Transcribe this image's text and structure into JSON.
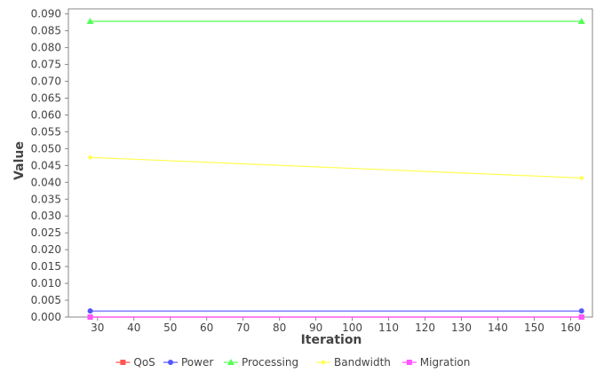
{
  "chart_data": {
    "type": "line",
    "title": "",
    "xlabel": "Iteration",
    "ylabel": "Value",
    "xlim": [
      22,
      166
    ],
    "ylim": [
      0,
      0.0915
    ],
    "xticks": [
      30,
      40,
      50,
      60,
      70,
      80,
      90,
      100,
      110,
      120,
      130,
      140,
      150,
      160
    ],
    "yticks": [
      0.0,
      0.005,
      0.01,
      0.015,
      0.02,
      0.025,
      0.03,
      0.035,
      0.04,
      0.045,
      0.05,
      0.055,
      0.06,
      0.065,
      0.07,
      0.075,
      0.08,
      0.085,
      0.09
    ],
    "ytick_labels": [
      "0.000",
      "0.005",
      "0.010",
      "0.015",
      "0.020",
      "0.025",
      "0.030",
      "0.035",
      "0.040",
      "0.045",
      "0.050",
      "0.055",
      "0.060",
      "0.065",
      "0.070",
      "0.075",
      "0.080",
      "0.085",
      "0.090"
    ],
    "grid": false,
    "legend_position": "bottom",
    "series": [
      {
        "name": "QoS",
        "color": "#ff5555",
        "marker": "square",
        "x": [
          28,
          163
        ],
        "y": [
          0.0,
          0.0
        ]
      },
      {
        "name": "Power",
        "color": "#5555ff",
        "marker": "circle",
        "x": [
          28,
          163
        ],
        "y": [
          0.0018,
          0.0018
        ]
      },
      {
        "name": "Processing",
        "color": "#55ff55",
        "marker": "triangle",
        "x": [
          28,
          163
        ],
        "y": [
          0.0878,
          0.0878
        ]
      },
      {
        "name": "Bandwidth",
        "color": "#ffff55",
        "marker": "diamond",
        "x": [
          28,
          163
        ],
        "y": [
          0.0474,
          0.0413
        ]
      },
      {
        "name": "Migration",
        "color": "#ff55ff",
        "marker": "square",
        "x": [
          28,
          163
        ],
        "y": [
          0.0,
          0.0
        ]
      }
    ]
  }
}
